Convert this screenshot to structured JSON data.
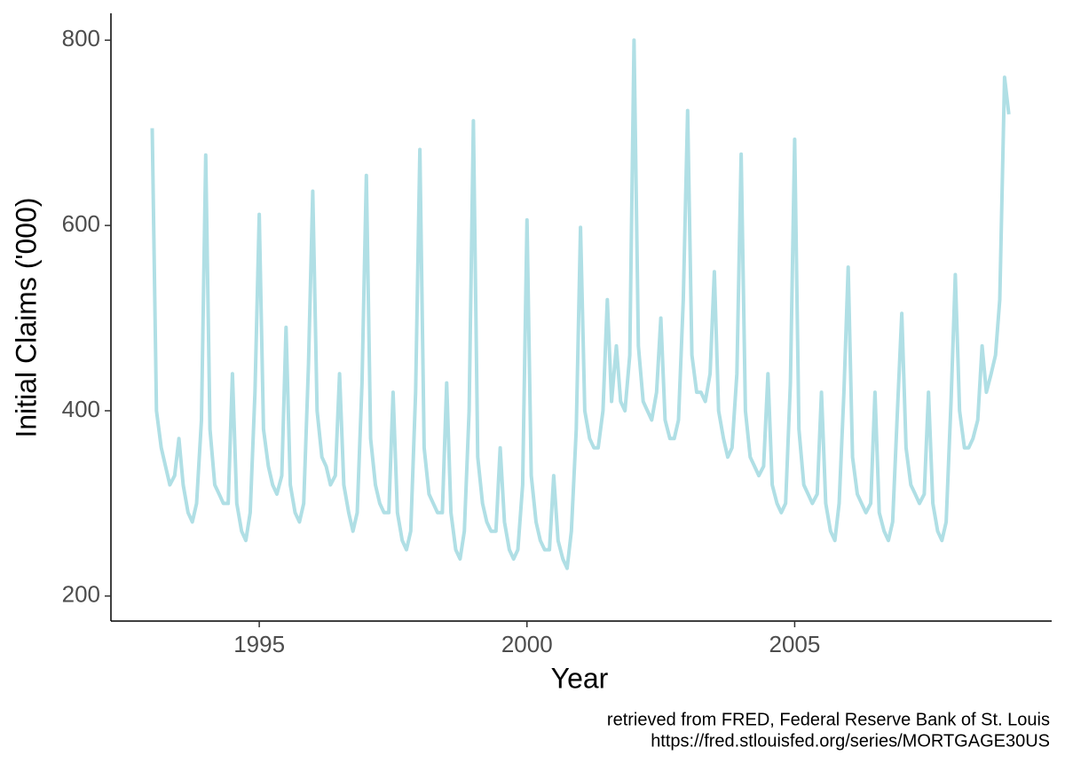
{
  "chart_data": {
    "type": "line",
    "x_label": "Year",
    "y_label": "Initial Claims ('000)",
    "caption": [
      "retrieved from FRED, Federal Reserve Bank of St. Louis",
      "https://fred.stlouisfed.org/series/MORTGAGE30US"
    ],
    "color": "#b0dfe5",
    "xlim": [
      1992.23,
      2009.8
    ],
    "ylim": [
      173,
      829
    ],
    "xticks": [
      1995,
      2000,
      2005
    ],
    "yticks": [
      200,
      400,
      600,
      800
    ],
    "x": [
      1993,
      1993.08,
      1993.17,
      1993.25,
      1993.33,
      1993.42,
      1993.5,
      1993.58,
      1993.67,
      1993.75,
      1993.83,
      1993.92,
      1994,
      1994.08,
      1994.17,
      1994.25,
      1994.33,
      1994.42,
      1994.5,
      1994.58,
      1994.67,
      1994.75,
      1994.83,
      1994.92,
      1995,
      1995.08,
      1995.17,
      1995.25,
      1995.33,
      1995.42,
      1995.5,
      1995.58,
      1995.67,
      1995.75,
      1995.83,
      1995.92,
      1996,
      1996.08,
      1996.17,
      1996.25,
      1996.33,
      1996.42,
      1996.5,
      1996.58,
      1996.67,
      1996.75,
      1996.83,
      1996.92,
      1997,
      1997.08,
      1997.17,
      1997.25,
      1997.33,
      1997.42,
      1997.5,
      1997.58,
      1997.67,
      1997.75,
      1997.83,
      1997.92,
      1998,
      1998.08,
      1998.17,
      1998.25,
      1998.33,
      1998.42,
      1998.5,
      1998.58,
      1998.67,
      1998.75,
      1998.83,
      1998.92,
      1999,
      1999.08,
      1999.17,
      1999.25,
      1999.33,
      1999.42,
      1999.5,
      1999.58,
      1999.67,
      1999.75,
      1999.83,
      1999.92,
      2000,
      2000.08,
      2000.17,
      2000.25,
      2000.33,
      2000.42,
      2000.5,
      2000.58,
      2000.67,
      2000.75,
      2000.83,
      2000.92,
      2001,
      2001.08,
      2001.17,
      2001.25,
      2001.33,
      2001.42,
      2001.5,
      2001.58,
      2001.67,
      2001.75,
      2001.83,
      2001.92,
      2002,
      2002.08,
      2002.17,
      2002.25,
      2002.33,
      2002.42,
      2002.5,
      2002.58,
      2002.67,
      2002.75,
      2002.83,
      2002.92,
      2003,
      2003.08,
      2003.17,
      2003.25,
      2003.33,
      2003.42,
      2003.5,
      2003.58,
      2003.67,
      2003.75,
      2003.83,
      2003.92,
      2004,
      2004.08,
      2004.17,
      2004.25,
      2004.33,
      2004.42,
      2004.5,
      2004.58,
      2004.67,
      2004.75,
      2004.83,
      2004.92,
      2005,
      2005.08,
      2005.17,
      2005.25,
      2005.33,
      2005.42,
      2005.5,
      2005.58,
      2005.67,
      2005.75,
      2005.83,
      2005.92,
      2006,
      2006.08,
      2006.17,
      2006.25,
      2006.33,
      2006.42,
      2006.5,
      2006.58,
      2006.67,
      2006.75,
      2006.83,
      2006.92,
      2007,
      2007.08,
      2007.17,
      2007.25,
      2007.33,
      2007.42,
      2007.5,
      2007.58,
      2007.67,
      2007.75,
      2007.83,
      2007.92,
      2008,
      2008.08,
      2008.17,
      2008.25,
      2008.33,
      2008.42,
      2008.5,
      2008.58,
      2008.67,
      2008.75,
      2008.83,
      2008.92,
      2009
    ],
    "values": [
      705,
      400,
      360,
      340,
      320,
      330,
      370,
      320,
      290,
      280,
      300,
      390,
      676,
      380,
      320,
      310,
      300,
      300,
      440,
      300,
      270,
      260,
      290,
      420,
      612,
      380,
      340,
      320,
      310,
      330,
      490,
      320,
      290,
      280,
      300,
      450,
      637,
      400,
      350,
      340,
      320,
      330,
      440,
      320,
      290,
      270,
      290,
      430,
      654,
      370,
      320,
      300,
      290,
      290,
      420,
      290,
      260,
      250,
      270,
      420,
      682,
      360,
      310,
      300,
      290,
      290,
      430,
      290,
      250,
      240,
      270,
      400,
      713,
      350,
      300,
      280,
      270,
      270,
      360,
      280,
      250,
      240,
      250,
      320,
      606,
      330,
      280,
      260,
      250,
      250,
      330,
      260,
      240,
      230,
      270,
      380,
      598,
      400,
      370,
      360,
      360,
      400,
      520,
      410,
      470,
      410,
      400,
      460,
      800,
      470,
      410,
      400,
      390,
      420,
      500,
      390,
      370,
      370,
      390,
      520,
      724,
      460,
      420,
      420,
      410,
      440,
      550,
      400,
      370,
      350,
      360,
      440,
      677,
      400,
      350,
      340,
      330,
      340,
      440,
      320,
      300,
      290,
      300,
      430,
      693,
      380,
      320,
      310,
      300,
      310,
      420,
      300,
      270,
      260,
      300,
      420,
      555,
      350,
      310,
      300,
      290,
      300,
      420,
      290,
      270,
      260,
      280,
      400,
      505,
      360,
      320,
      310,
      300,
      310,
      420,
      300,
      270,
      260,
      280,
      410,
      547,
      400,
      360,
      360,
      370,
      390,
      470,
      420,
      440,
      460,
      520,
      760,
      720
    ]
  }
}
